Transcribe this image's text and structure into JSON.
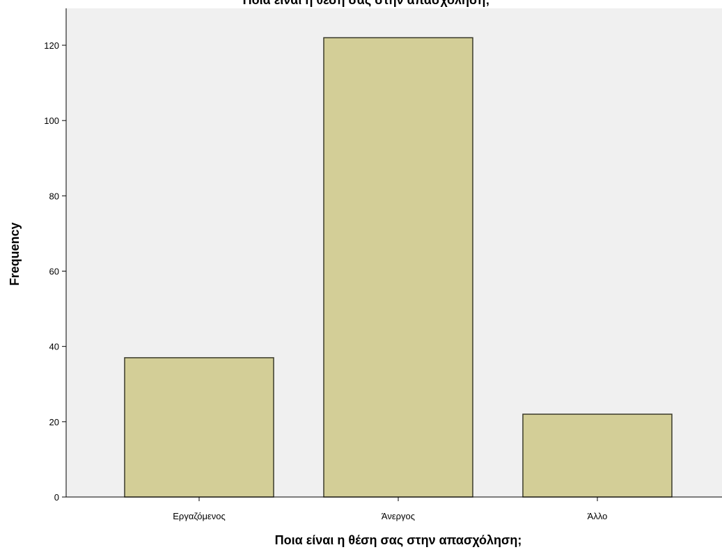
{
  "chart_data": {
    "type": "bar",
    "title": "Ποια είναι η θέση σας στην απασχόληση;",
    "xlabel": "Ποια είναι η θέση σας στην απασχόληση;",
    "ylabel": "Frequency",
    "categories": [
      "Εργαζόμενος",
      "Άνεργος",
      "Άλλο"
    ],
    "values": [
      37,
      122,
      22
    ],
    "ylim": [
      0,
      130
    ],
    "yticks": [
      0,
      20,
      40,
      60,
      80,
      100,
      120
    ],
    "grid": false,
    "legend": "none",
    "colors": {
      "bar_fill": "#d3ce97",
      "bar_stroke": "#3a3a2a",
      "plot_background": "#f0f0f0",
      "axis": "#000000"
    }
  }
}
